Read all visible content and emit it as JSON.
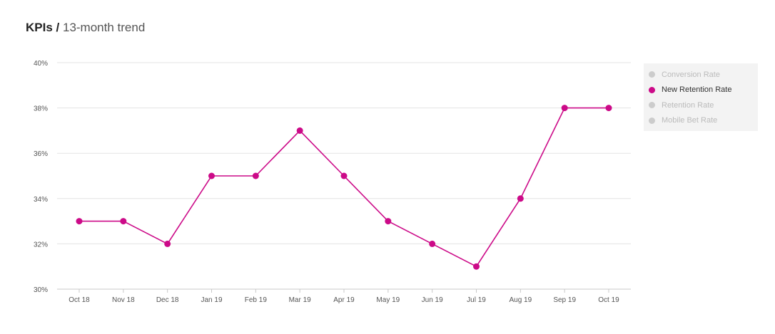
{
  "header": {
    "title_bold": "KPIs /",
    "title_rest": "13-month trend"
  },
  "legend": {
    "items": [
      {
        "label": "Conversion Rate",
        "active": false
      },
      {
        "label": "New Retention Rate",
        "active": true
      },
      {
        "label": "Retention Rate",
        "active": false
      },
      {
        "label": "Mobile Bet Rate",
        "active": false
      }
    ]
  },
  "colors": {
    "accent": "#cc0a88",
    "inactive": "#cccccc",
    "grid": "#e3e3e3",
    "axis": "#c8c8c8",
    "tick_text": "#555555"
  },
  "chart_data": {
    "type": "line",
    "title": "",
    "xlabel": "",
    "ylabel": "",
    "categories": [
      "Oct 18",
      "Nov 18",
      "Dec 18",
      "Jan 19",
      "Feb 19",
      "Mar 19",
      "Apr 19",
      "May 19",
      "Jun 19",
      "Jul 19",
      "Aug 19",
      "Sep 19",
      "Oct 19"
    ],
    "series": [
      {
        "name": "New Retention Rate",
        "values": [
          33,
          33,
          32,
          35,
          35,
          37,
          35,
          33,
          32,
          31,
          34,
          38,
          38
        ]
      }
    ],
    "ylim": [
      30,
      40
    ],
    "yticks": [
      30,
      32,
      34,
      36,
      38,
      40
    ],
    "ytick_labels": [
      "30%",
      "32%",
      "34%",
      "36%",
      "38%",
      "40%"
    ],
    "grid": true,
    "legend_position": "right"
  }
}
